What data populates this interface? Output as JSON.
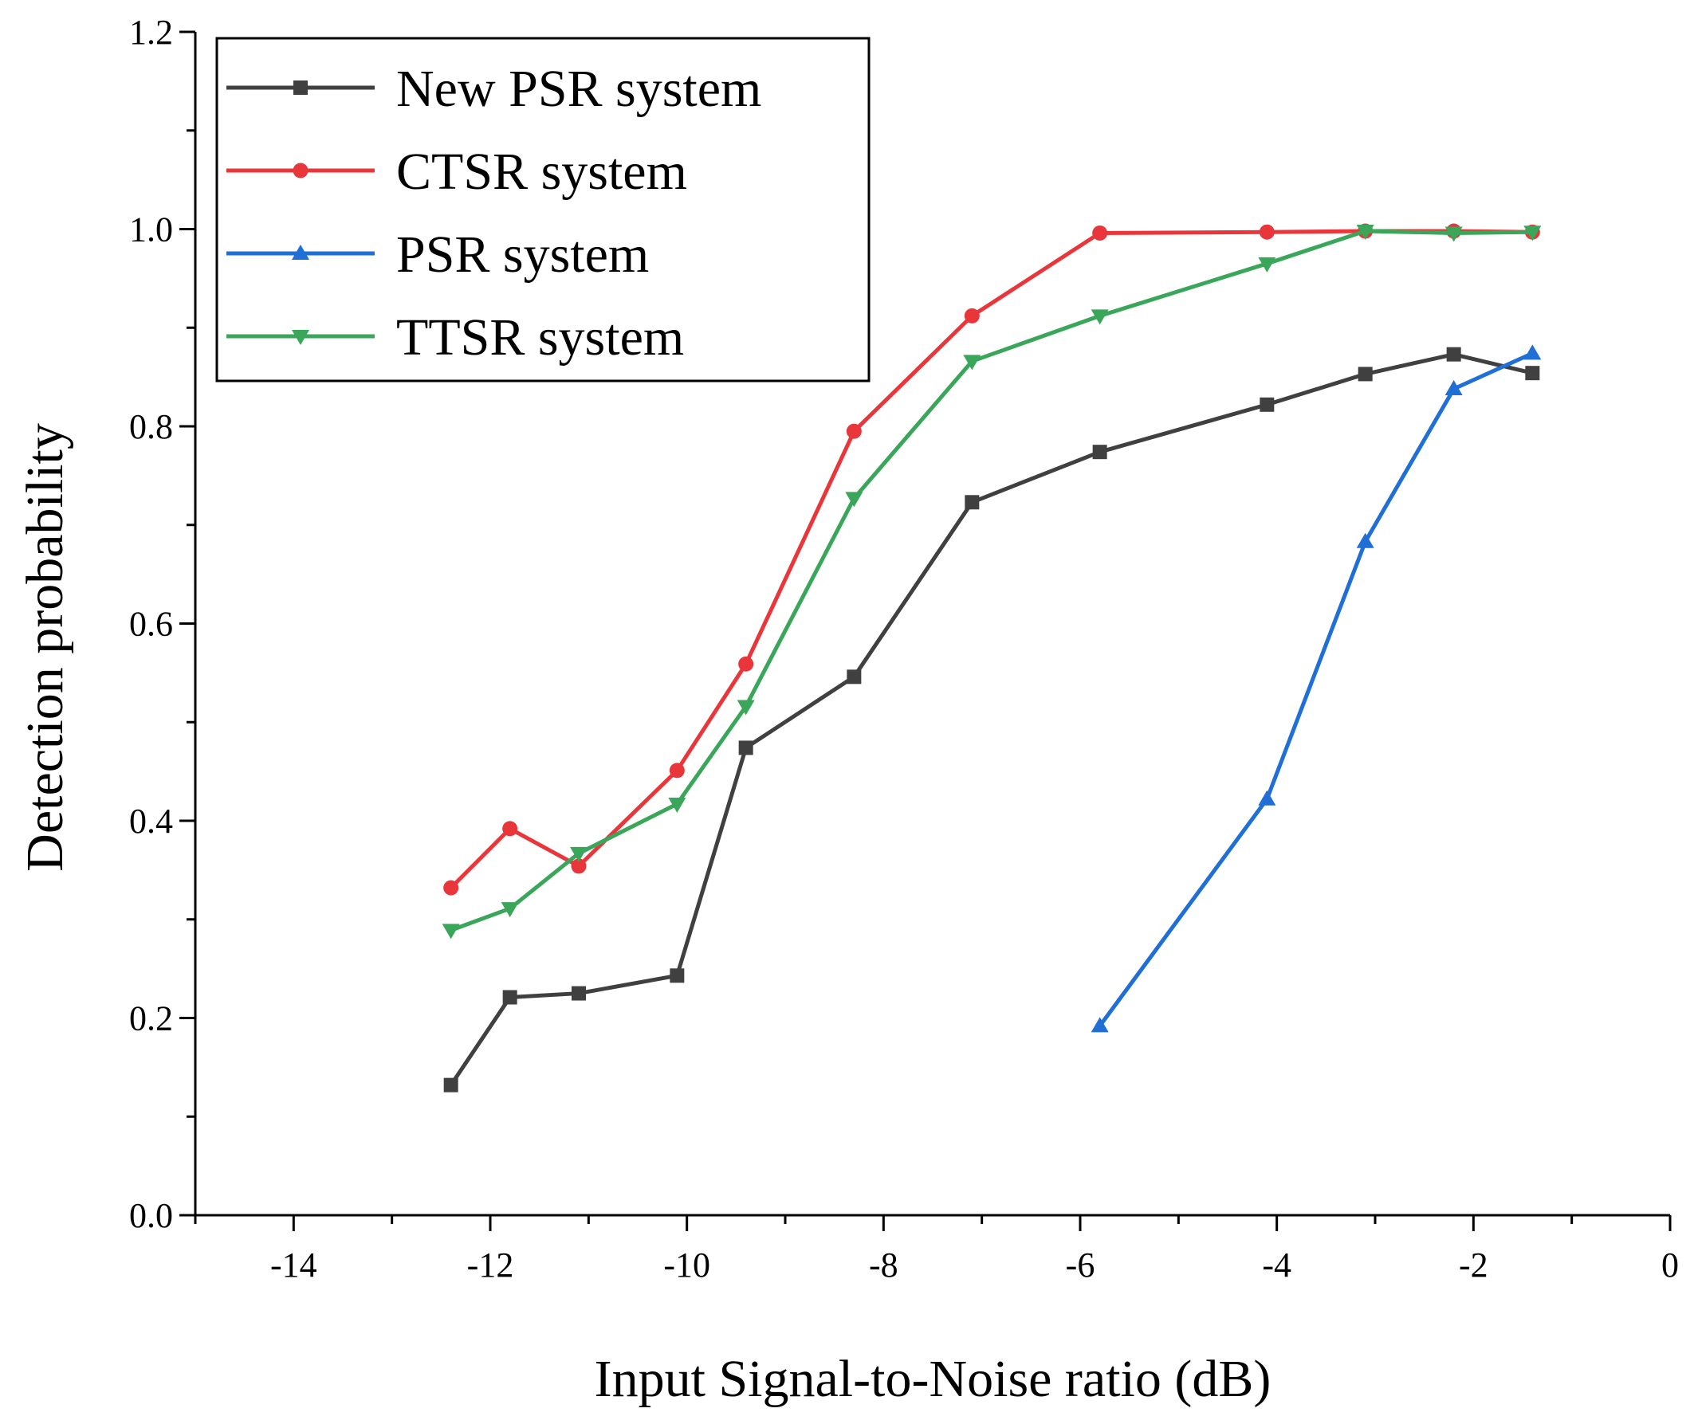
{
  "chart_data": {
    "type": "line",
    "title": "",
    "xlabel": "Input Signal-to-Noise ratio (dB)",
    "ylabel": "Detection probability",
    "xlim": [
      -15,
      0
    ],
    "ylim": [
      0,
      1.2
    ],
    "xticks": [
      -14,
      -12,
      -10,
      -8,
      -6,
      -4,
      -2,
      0
    ],
    "xtick_labels": [
      "-14",
      "-12",
      "-10",
      "-8",
      "-6",
      "-4",
      "-2",
      "0"
    ],
    "yticks": [
      0,
      0.2,
      0.4,
      0.6,
      0.8,
      1.0,
      1.2
    ],
    "ytick_labels": [
      "0.0",
      "0.2",
      "0.4",
      "0.6",
      "0.8",
      "1.0",
      "1.2"
    ],
    "grid": false,
    "legend_position": "top-left",
    "series": [
      {
        "name": "New PSR system",
        "color": "#404040",
        "marker": "square",
        "x": [
          -12.4,
          -11.8,
          -11.1,
          -10.1,
          -9.4,
          -8.3,
          -7.1,
          -5.8,
          -4.1,
          -3.1,
          -2.2,
          -1.4
        ],
        "y": [
          0.132,
          0.221,
          0.225,
          0.243,
          0.474,
          0.546,
          0.723,
          0.774,
          0.822,
          0.853,
          0.873,
          0.854
        ]
      },
      {
        "name": "CTSR system",
        "color": "#e8363a",
        "marker": "circle",
        "x": [
          -12.4,
          -11.8,
          -11.1,
          -10.1,
          -9.4,
          -8.3,
          -7.1,
          -5.8,
          -4.1,
          -3.1,
          -2.2,
          -1.4
        ],
        "y": [
          0.332,
          0.392,
          0.354,
          0.451,
          0.559,
          0.795,
          0.912,
          0.996,
          0.997,
          0.998,
          0.998,
          0.997
        ]
      },
      {
        "name": "PSR system",
        "color": "#1f6fd6",
        "marker": "triangle-up",
        "x": [
          -5.8,
          -4.1,
          -3.1,
          -2.2,
          -1.4
        ],
        "y": [
          0.192,
          0.422,
          0.683,
          0.838,
          0.874
        ]
      },
      {
        "name": "TTSR system",
        "color": "#3aa65a",
        "marker": "triangle-down",
        "x": [
          -12.4,
          -11.8,
          -11.1,
          -10.1,
          -9.4,
          -8.3,
          -7.1,
          -5.8,
          -4.1,
          -3.1,
          -2.2,
          -1.4
        ],
        "y": [
          0.289,
          0.311,
          0.367,
          0.417,
          0.516,
          0.727,
          0.866,
          0.912,
          0.965,
          0.998,
          0.996,
          0.997
        ]
      }
    ]
  }
}
